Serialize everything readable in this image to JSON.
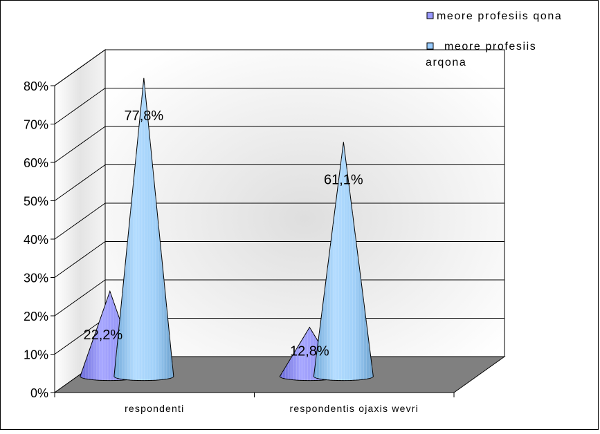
{
  "chart_data": {
    "type": "bar",
    "subtype": "3d-cone",
    "categories": [
      "respondenti",
      "respondentis ojaxis wevri"
    ],
    "series": [
      {
        "name": "meore profesiis qona",
        "values": [
          22.2,
          12.8
        ],
        "labels": [
          "22,2%",
          "12,8%"
        ],
        "color": "#9999ff"
      },
      {
        "name": "meore profesiis arqona",
        "values": [
          77.8,
          61.1
        ],
        "labels": [
          "77,8%",
          "61,1%"
        ],
        "color": "#99ccff"
      }
    ],
    "ylim": [
      0,
      80
    ],
    "yticks": [
      "0%",
      "10%",
      "20%",
      "30%",
      "40%",
      "50%",
      "60%",
      "70%",
      "80%"
    ],
    "xlabel": "",
    "ylabel": "",
    "title": "",
    "grid": true,
    "legend": {
      "position": "top-right",
      "entries": [
        {
          "lines": [
            "meore profesiis qona"
          ],
          "color": "#9999ff"
        },
        {
          "lines": [
            "meore profesiis",
            "arqona"
          ],
          "color": "#99ccff"
        }
      ]
    },
    "colors": {
      "floor": "#808080",
      "gridline": "#000000",
      "wall": "#ffffff"
    }
  }
}
